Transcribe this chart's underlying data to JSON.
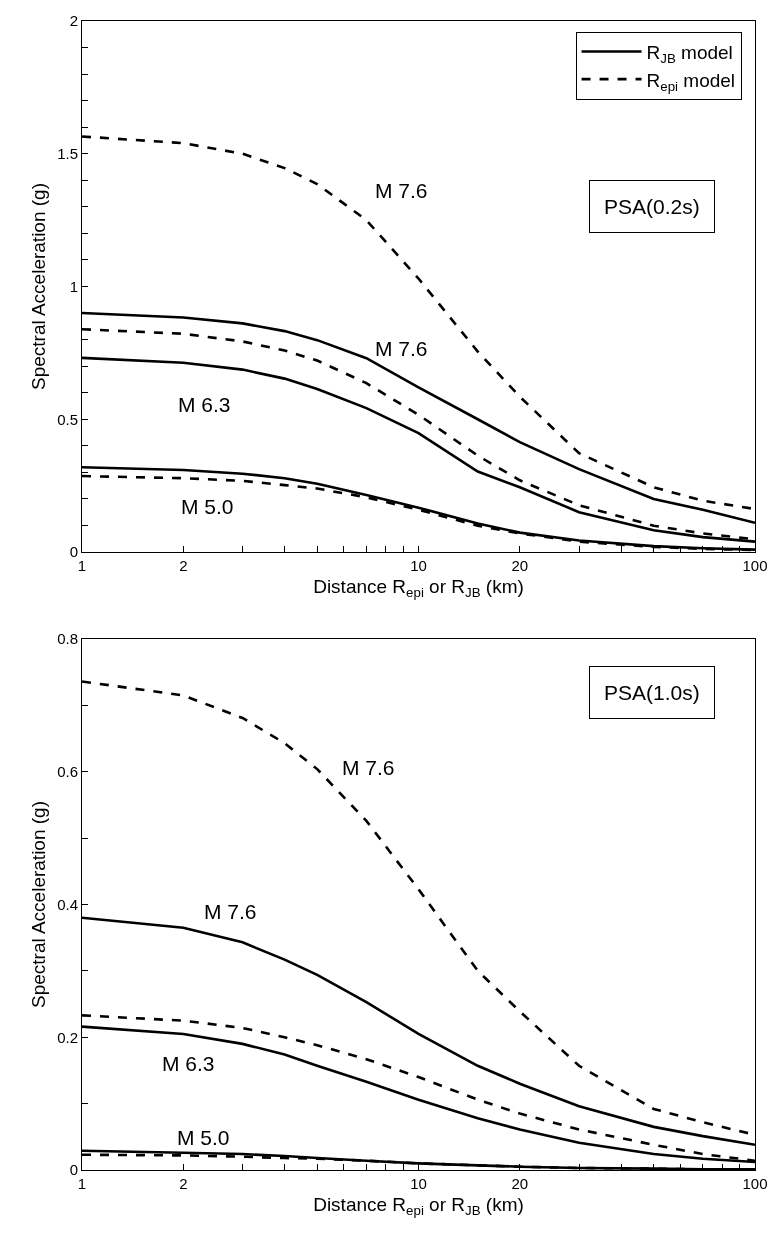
{
  "chart_data": [
    {
      "type": "line",
      "xlabel": "Distance R$_{epi}$ or R$_{JB}$ (km)",
      "ylabel": "Spectral Acceleration (g)",
      "log": "x",
      "legend": "top right",
      "grid": false,
      "xlim": [
        1,
        100
      ],
      "xticks": [
        1,
        2,
        {
          "value": 3,
          "label": null
        },
        {
          "value": 4,
          "label": null
        },
        {
          "value": 5,
          "label": null
        },
        {
          "value": 6,
          "label": null
        },
        {
          "value": 7,
          "label": null
        },
        {
          "value": 8,
          "label": null
        },
        {
          "value": 9,
          "label": null
        },
        10,
        20,
        {
          "value": 30,
          "label": null
        },
        {
          "value": 40,
          "label": null
        },
        {
          "value": 50,
          "label": null
        },
        {
          "value": 60,
          "label": null
        },
        {
          "value": 70,
          "label": null
        },
        {
          "value": 80,
          "label": null
        },
        {
          "value": 90,
          "label": null
        },
        100
      ],
      "ylim": [
        0,
        2
      ],
      "yticks": [
        0,
        {
          "value": 0.1,
          "label": null
        },
        {
          "value": 0.2,
          "label": null
        },
        {
          "value": 0.3,
          "label": null
        },
        {
          "value": 0.4,
          "label": null
        },
        0.5,
        {
          "value": 0.6,
          "label": null
        },
        {
          "value": 0.7,
          "label": null
        },
        {
          "value": 0.8,
          "label": null
        },
        {
          "value": 0.9,
          "label": null
        },
        1,
        {
          "value": 1.1,
          "label": null
        },
        {
          "value": 1.2,
          "label": null
        },
        {
          "value": 1.3,
          "label": null
        },
        {
          "value": 1.4,
          "label": null
        },
        1.5,
        {
          "value": 1.6,
          "label": null
        },
        {
          "value": 1.7,
          "label": null
        },
        {
          "value": 1.8,
          "label": null
        },
        {
          "value": 1.9,
          "label": null
        },
        2
      ],
      "x": [
        1,
        2,
        3,
        4,
        5,
        7,
        10,
        15,
        20,
        30,
        50,
        70,
        100
      ],
      "series": [
        {
          "name": "R$_{JB}$ model",
          "color": "#000000",
          "line_style": "solid",
          "values": [
            0.9,
            0.883,
            0.861,
            0.832,
            0.798,
            0.73,
            0.62,
            0.5,
            0.414,
            0.312,
            0.2,
            0.159,
            0.11
          ]
        },
        {
          "name": "R$_{epi}$ model",
          "color": "#000000",
          "line_style": "dashed",
          "values": [
            1.565,
            1.54,
            1.5,
            1.446,
            1.386,
            1.25,
            1.03,
            0.755,
            0.585,
            0.372,
            0.244,
            0.193,
            0.162
          ]
        },
        {
          "color": "#000000",
          "line_style": "dashed",
          "values": [
            0.839,
            0.822,
            0.793,
            0.759,
            0.721,
            0.636,
            0.517,
            0.363,
            0.27,
            0.176,
            0.099,
            0.07,
            0.048
          ]
        },
        {
          "color": "#000000",
          "line_style": "solid",
          "values": [
            0.731,
            0.713,
            0.687,
            0.653,
            0.614,
            0.542,
            0.448,
            0.303,
            0.244,
            0.15,
            0.082,
            0.056,
            0.039
          ]
        },
        {
          "color": "#000000",
          "line_style": "solid",
          "values": [
            0.319,
            0.309,
            0.295,
            0.278,
            0.257,
            0.215,
            0.167,
            0.107,
            0.073,
            0.043,
            0.022,
            0.014,
            0.009
          ]
        },
        {
          "color": "#000000",
          "line_style": "dashed",
          "values": [
            0.286,
            0.278,
            0.268,
            0.252,
            0.239,
            0.206,
            0.159,
            0.099,
            0.07,
            0.039,
            0.019,
            0.012,
            0.007
          ]
        }
      ],
      "annotations": [
        "PSA(0.2s)",
        "M 7.6",
        "M 7.6",
        "M 6.3",
        "M 5.0"
      ]
    },
    {
      "type": "line",
      "xlabel": "Distance R$_{epi}$ or R$_{JB}$ (km)",
      "ylabel": "Spectral Acceleration (g)",
      "log": "x",
      "grid": false,
      "xlim": [
        1,
        100
      ],
      "xticks": [
        1,
        2,
        {
          "value": 3,
          "label": null
        },
        {
          "value": 4,
          "label": null
        },
        {
          "value": 5,
          "label": null
        },
        {
          "value": 6,
          "label": null
        },
        {
          "value": 7,
          "label": null
        },
        {
          "value": 8,
          "label": null
        },
        {
          "value": 9,
          "label": null
        },
        10,
        20,
        {
          "value": 30,
          "label": null
        },
        {
          "value": 40,
          "label": null
        },
        {
          "value": 50,
          "label": null
        },
        {
          "value": 60,
          "label": null
        },
        {
          "value": 70,
          "label": null
        },
        {
          "value": 80,
          "label": null
        },
        {
          "value": 90,
          "label": null
        },
        100
      ],
      "ylim": [
        0,
        0.8
      ],
      "yticks": [
        0,
        {
          "value": 0.1,
          "label": null
        },
        0.2,
        {
          "value": 0.3,
          "label": null
        },
        0.4,
        {
          "value": 0.5,
          "label": null
        },
        0.6,
        {
          "value": 0.7,
          "label": null
        },
        0.8
      ],
      "x": [
        1,
        2,
        3,
        4,
        5,
        7,
        10,
        15,
        20,
        30,
        50,
        70,
        100
      ],
      "series": [
        {
          "color": "#000000",
          "line_style": "dashed",
          "values": [
            0.736,
            0.715,
            0.681,
            0.643,
            0.604,
            0.526,
            0.423,
            0.3,
            0.239,
            0.157,
            0.092,
            0.072,
            0.053
          ]
        },
        {
          "color": "#000000",
          "line_style": "solid",
          "values": [
            0.38,
            0.365,
            0.343,
            0.317,
            0.294,
            0.253,
            0.205,
            0.157,
            0.13,
            0.096,
            0.065,
            0.051,
            0.038
          ]
        },
        {
          "color": "#000000",
          "line_style": "dashed",
          "values": [
            0.233,
            0.225,
            0.214,
            0.2,
            0.188,
            0.167,
            0.14,
            0.106,
            0.085,
            0.061,
            0.038,
            0.024,
            0.014
          ]
        },
        {
          "color": "#000000",
          "line_style": "solid",
          "values": [
            0.216,
            0.205,
            0.19,
            0.174,
            0.157,
            0.133,
            0.106,
            0.078,
            0.061,
            0.041,
            0.024,
            0.017,
            0.012
          ]
        },
        {
          "color": "#000000",
          "line_style": "solid",
          "values": [
            0.029,
            0.026,
            0.024,
            0.021,
            0.018,
            0.014,
            0.01,
            0.007,
            0.005,
            0.003,
            0.002,
            0.001,
            0.001
          ]
        },
        {
          "color": "#000000",
          "line_style": "dashed",
          "values": [
            0.023,
            0.022,
            0.02,
            0.018,
            0.017,
            0.014,
            0.01,
            0.007,
            0.005,
            0.003,
            0.002,
            0.001,
            0.001
          ]
        }
      ],
      "annotations": [
        "PSA(1.0s)",
        "M 7.6",
        "M 7.6",
        "M 6.3",
        "M 5.0"
      ]
    }
  ]
}
